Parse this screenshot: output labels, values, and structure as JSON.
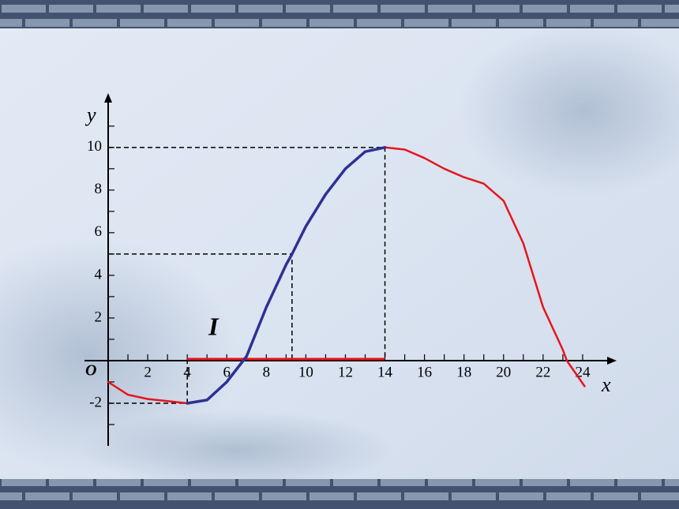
{
  "chart_data": {
    "type": "line",
    "xlabel": "x",
    "ylabel": "y",
    "origin_label": "O",
    "x": [
      0,
      1,
      2,
      3,
      4,
      5,
      6,
      7,
      8,
      9,
      9.3,
      10,
      11,
      12,
      13,
      14,
      15,
      16,
      17,
      18,
      19,
      20,
      21,
      22,
      23,
      23.2,
      24.1
    ],
    "series": [
      {
        "color": "#e8141c",
        "values": [
          -1.0,
          -1.6,
          -1.8,
          -1.9,
          -2,
          -1.85,
          -1.0,
          0.2,
          2.5,
          4.5,
          5,
          6.3,
          7.8,
          9.0,
          9.8,
          10,
          9.9,
          9.5,
          9.0,
          8.6,
          8.3,
          7.5,
          5.5,
          2.5,
          0.5,
          0,
          -1.2
        ]
      },
      {
        "color": "#2e3192",
        "values": [
          null,
          null,
          null,
          null,
          -2,
          -1.85,
          -1.0,
          0.2,
          2.5,
          4.5,
          5,
          6.3,
          7.8,
          9.0,
          9.8,
          10,
          null,
          null,
          null,
          null,
          null,
          null,
          null,
          null,
          null,
          null,
          null
        ]
      }
    ],
    "xlim": [
      0,
      25.4
    ],
    "ylim": [
      -4,
      12.4
    ],
    "xticks": [
      2,
      4,
      6,
      8,
      10,
      12,
      14,
      16,
      18,
      20,
      22,
      24
    ],
    "xminor_ticks": [
      1,
      3,
      5,
      7,
      9,
      11,
      13,
      15,
      17,
      19,
      21,
      23
    ],
    "yticks": [
      -2,
      2,
      4,
      6,
      8,
      10
    ],
    "yminor_ticks": [
      -3,
      -1,
      1,
      3,
      5,
      7,
      9,
      11
    ],
    "guides": [
      {
        "x": 14,
        "y": 10
      },
      {
        "x": 9.3,
        "y": 5
      },
      {
        "x": 4,
        "y": -2
      }
    ],
    "interval": {
      "from": 4,
      "to": 14,
      "label": "I",
      "color": "#e8141c"
    }
  }
}
